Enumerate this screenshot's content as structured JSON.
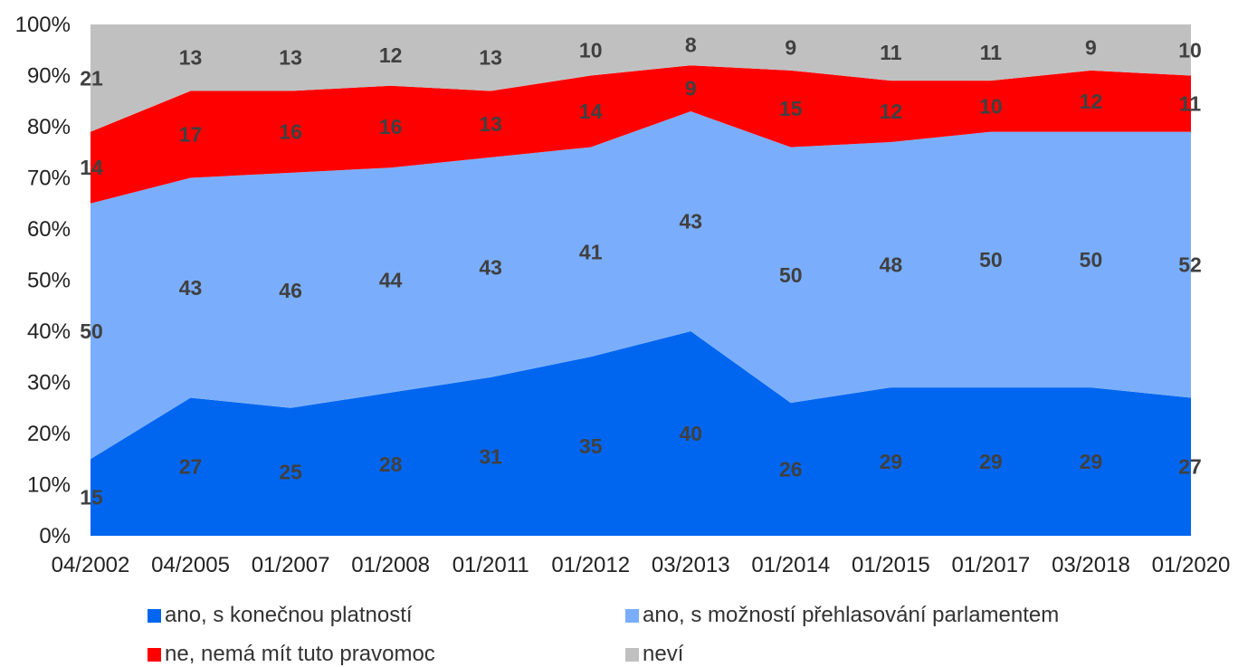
{
  "chart_data": {
    "type": "area",
    "stacked": true,
    "categories": [
      "04/2002",
      "04/2005",
      "01/2007",
      "01/2008",
      "01/2011",
      "01/2012",
      "03/2013",
      "01/2014",
      "01/2015",
      "01/2017",
      "03/2018",
      "01/2020"
    ],
    "y_tick_labels": [
      "0%",
      "10%",
      "20%",
      "30%",
      "40%",
      "50%",
      "60%",
      "70%",
      "80%",
      "90%",
      "100%"
    ],
    "ylim": [
      0,
      100
    ],
    "grid": false,
    "legend_position": "bottom",
    "series": [
      {
        "name": "ano, s konečnou platností",
        "color": "#0066f0",
        "values": [
          15,
          27,
          25,
          28,
          31,
          35,
          40,
          26,
          29,
          29,
          29,
          27
        ]
      },
      {
        "name": "ano, s možností přehlasování parlamentem",
        "color": "#7aaefc",
        "values": [
          50,
          43,
          46,
          44,
          43,
          41,
          43,
          50,
          48,
          50,
          50,
          52
        ]
      },
      {
        "name": "ne, nemá mít tuto pravomoc",
        "color": "#ff0000",
        "values": [
          14,
          17,
          16,
          16,
          13,
          14,
          9,
          15,
          12,
          10,
          12,
          11
        ]
      },
      {
        "name": "neví",
        "color": "#c0c0c0",
        "values": [
          21,
          13,
          13,
          12,
          13,
          10,
          8,
          9,
          11,
          11,
          9,
          10
        ]
      }
    ]
  }
}
